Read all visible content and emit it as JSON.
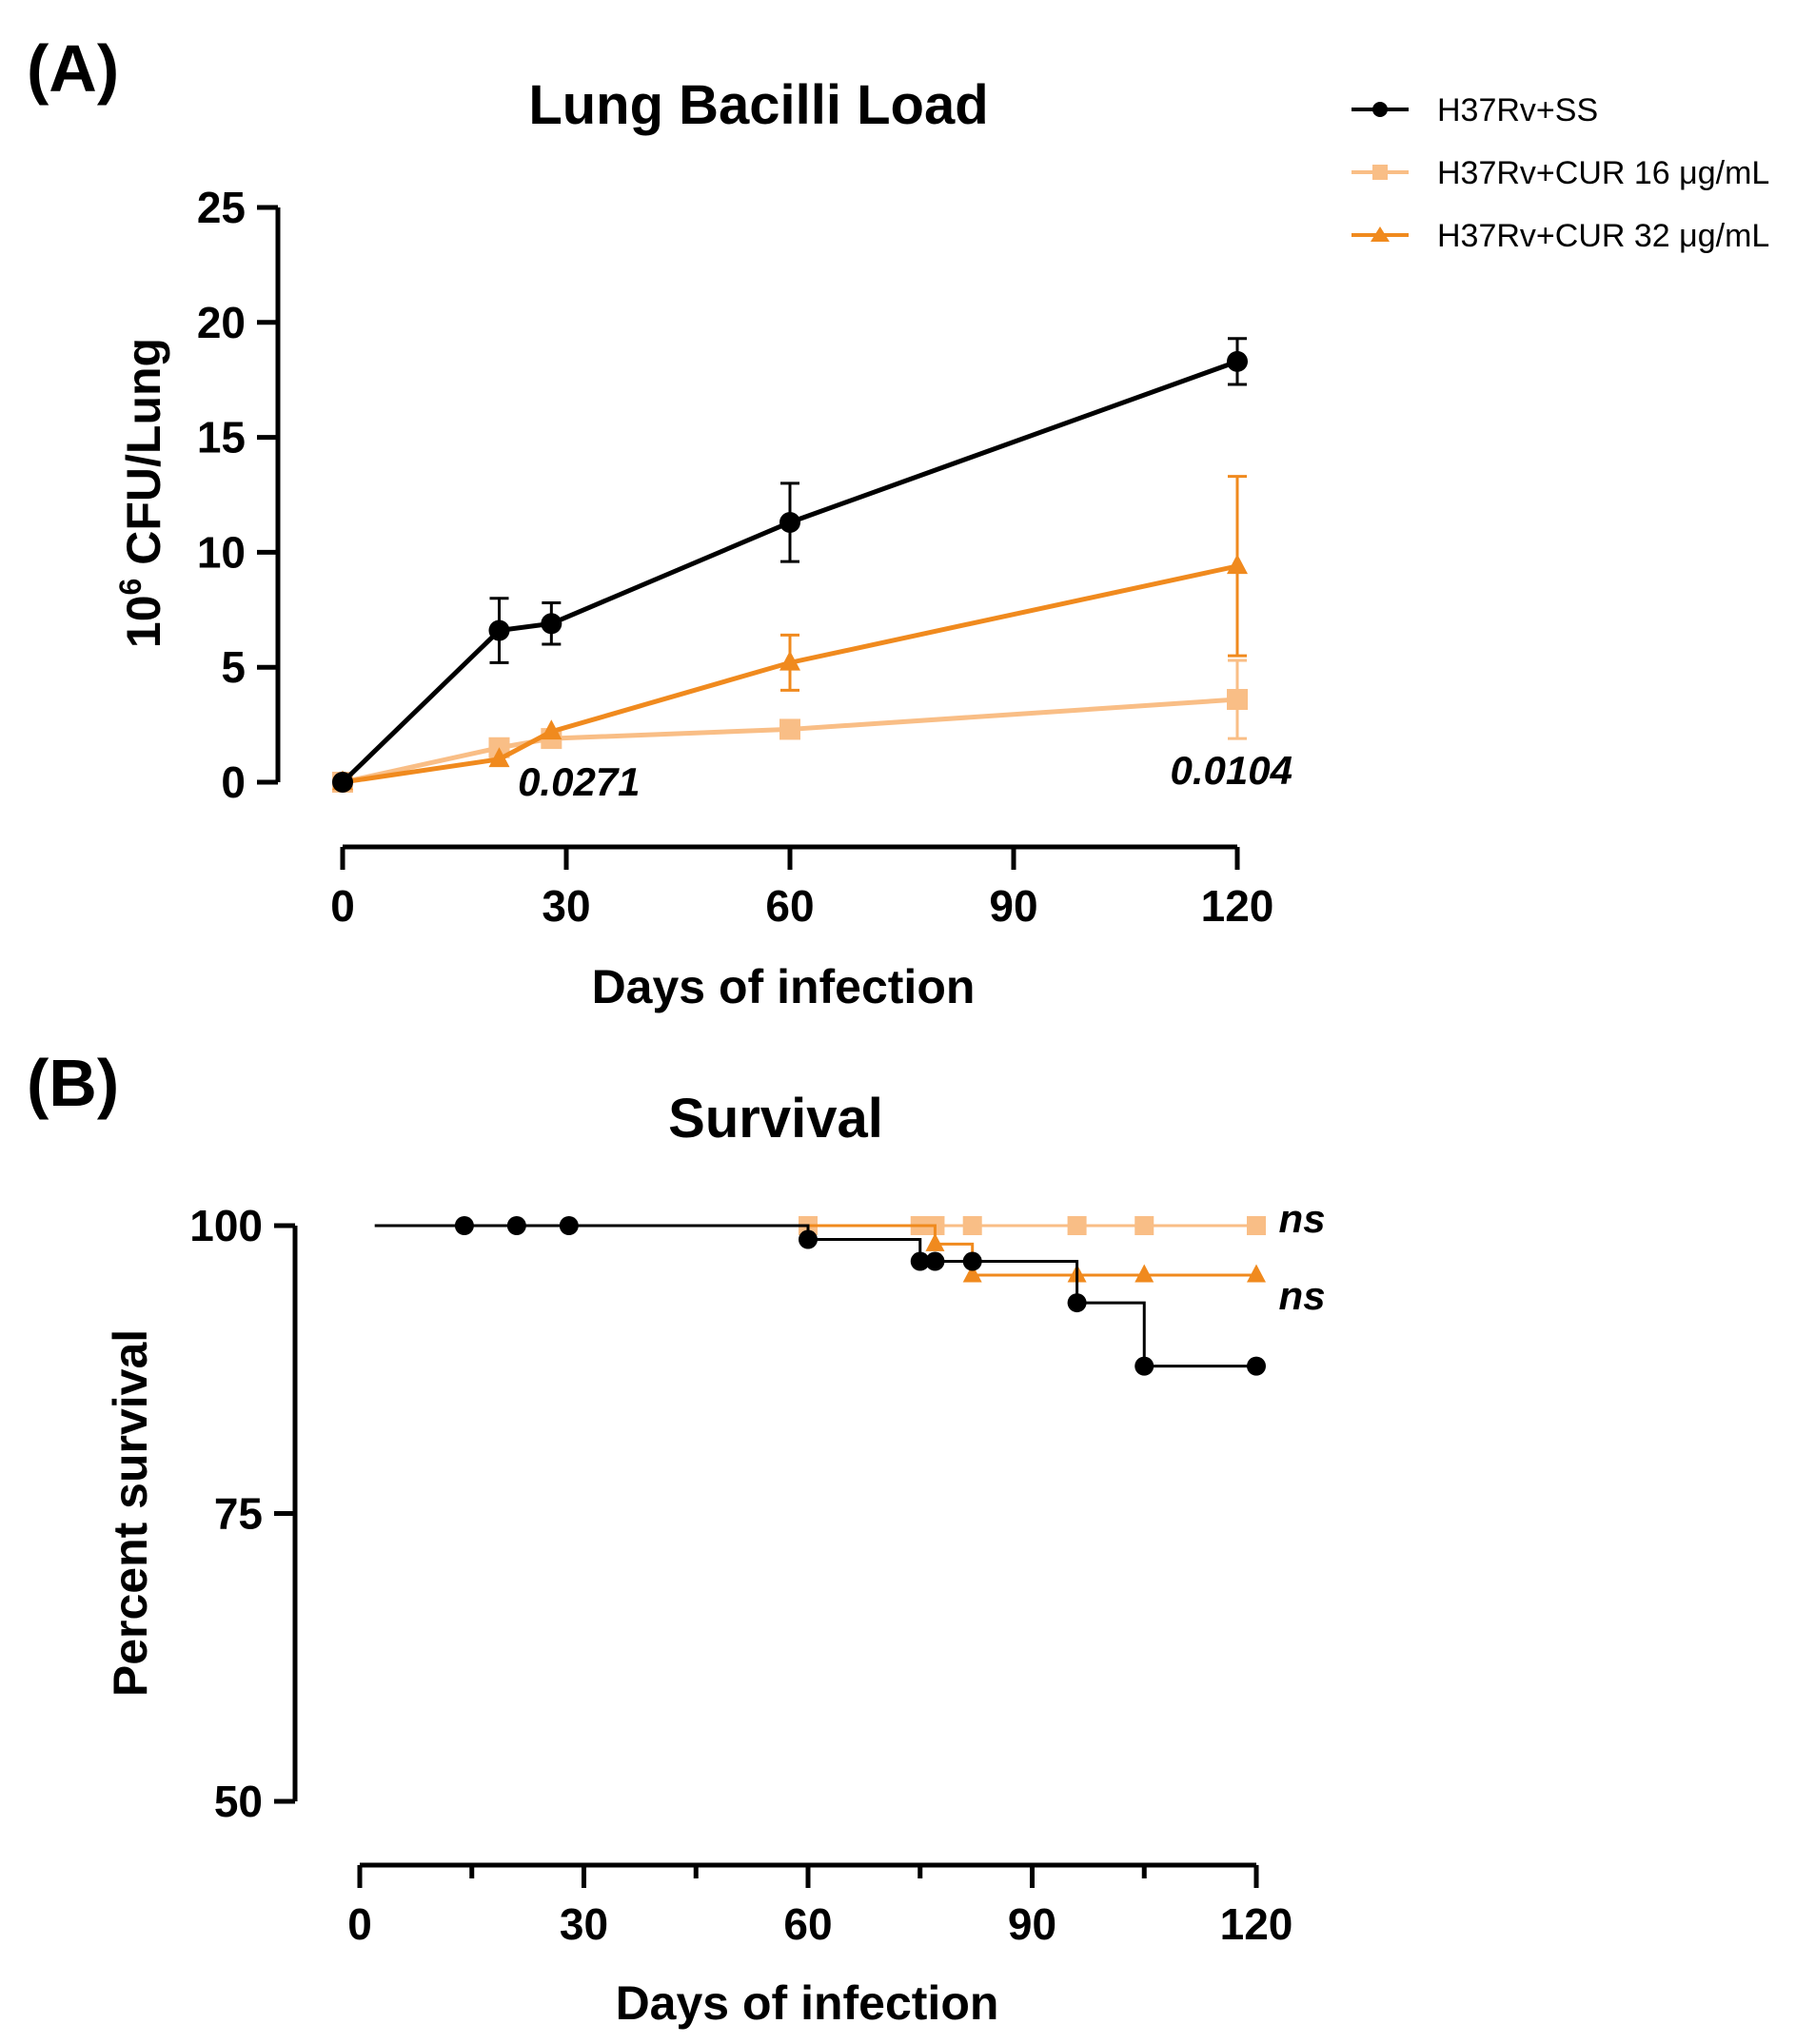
{
  "legend": [
    {
      "label": "H37Rv+SS",
      "color": "#000000",
      "marker": "circle"
    },
    {
      "label": "H37Rv+CUR 16 μg/mL",
      "color": "#F9BE86",
      "marker": "square"
    },
    {
      "label": "H37Rv+CUR 32 μg/mL",
      "color": "#F08A1E",
      "marker": "triangle"
    }
  ],
  "chart_data": [
    {
      "panel": "(A)",
      "type": "line",
      "title": "Lung Bacilli Load",
      "xlabel": "Days of infection",
      "ylabel_base": "10",
      "ylabel_sup": "6",
      "ylabel_rest": " CFU/Lung",
      "xlim": [
        0,
        120
      ],
      "ylim": [
        0,
        25
      ],
      "xticks": [
        0,
        30,
        60,
        90,
        120
      ],
      "yticks": [
        0,
        5,
        10,
        15,
        20,
        25
      ],
      "series": [
        {
          "name": "H37Rv+SS",
          "color": "#000000",
          "marker": "circle",
          "x": [
            0,
            21,
            28,
            60,
            120
          ],
          "y": [
            0,
            6.6,
            6.9,
            11.3,
            18.3
          ],
          "err": [
            0,
            1.4,
            0.9,
            1.7,
            1.0
          ]
        },
        {
          "name": "H37Rv+CUR 16 μg/mL",
          "color": "#F9BE86",
          "marker": "square",
          "x": [
            0,
            21,
            28,
            60,
            120
          ],
          "y": [
            0,
            1.5,
            1.9,
            2.3,
            3.6
          ],
          "err": [
            0,
            0,
            0,
            0,
            1.7
          ]
        },
        {
          "name": "H37Rv+CUR 32 μg/mL",
          "color": "#F08A1E",
          "marker": "triangle",
          "x": [
            0,
            21,
            28,
            60,
            120
          ],
          "y": [
            0,
            1.0,
            2.2,
            5.2,
            9.4
          ],
          "err": [
            0,
            0,
            0,
            1.2,
            3.9
          ]
        }
      ],
      "annotations": [
        {
          "text": "0.0271",
          "x": 23.5,
          "y": 0
        },
        {
          "text": "0.0104",
          "x": 111,
          "y": 0.5
        }
      ]
    },
    {
      "panel": "(B)",
      "type": "line",
      "title": "Survival",
      "xlabel": "Days of infection",
      "ylabel": "Percent survival",
      "xlim": [
        0,
        120
      ],
      "ylim": [
        50,
        100
      ],
      "xticks": [
        0,
        30,
        60,
        90,
        120
      ],
      "yticks": [
        50,
        75,
        100
      ],
      "series": [
        {
          "name": "H37Rv+SS",
          "color": "#000000",
          "marker": "circle",
          "steps": [
            [
              2,
              100
            ],
            [
              60,
              100
            ],
            [
              60,
              98.8
            ],
            [
              75,
              98.8
            ],
            [
              75,
              96.9
            ],
            [
              82,
              96.9
            ],
            [
              82,
              96.9
            ],
            [
              96,
              96.9
            ],
            [
              96,
              93.3
            ],
            [
              105,
              93.3
            ],
            [
              105,
              87.8
            ],
            [
              120,
              87.8
            ]
          ],
          "markers": [
            [
              14,
              100
            ],
            [
              21,
              100
            ],
            [
              28,
              100
            ],
            [
              60,
              98.8
            ],
            [
              75,
              96.9
            ],
            [
              77,
              96.9
            ],
            [
              82,
              96.9
            ],
            [
              96,
              93.3
            ],
            [
              105,
              87.8
            ],
            [
              120,
              87.8
            ]
          ]
        },
        {
          "name": "H37Rv+CUR 16 μg/mL",
          "color": "#F9BE86",
          "marker": "square",
          "steps": [
            [
              60,
              100
            ],
            [
              120,
              100
            ]
          ],
          "markers": [
            [
              60,
              100
            ],
            [
              75,
              100
            ],
            [
              77,
              100
            ],
            [
              82,
              100
            ],
            [
              96,
              100
            ],
            [
              105,
              100
            ],
            [
              120,
              100
            ]
          ]
        },
        {
          "name": "H37Rv+CUR 32 μg/mL",
          "color": "#F08A1E",
          "marker": "triangle",
          "steps": [
            [
              60,
              100
            ],
            [
              77,
              100
            ],
            [
              77,
              98.4
            ],
            [
              82,
              98.4
            ],
            [
              82,
              95.7
            ],
            [
              120,
              95.7
            ]
          ],
          "markers": [
            [
              77,
              98.4
            ],
            [
              82,
              95.7
            ],
            [
              96,
              95.7
            ],
            [
              105,
              95.7
            ],
            [
              120,
              95.7
            ]
          ]
        }
      ],
      "annotations": [
        {
          "text": "ns",
          "x": 123,
          "y": 100.4
        },
        {
          "text": "ns",
          "x": 123,
          "y": 93.7
        }
      ]
    }
  ]
}
